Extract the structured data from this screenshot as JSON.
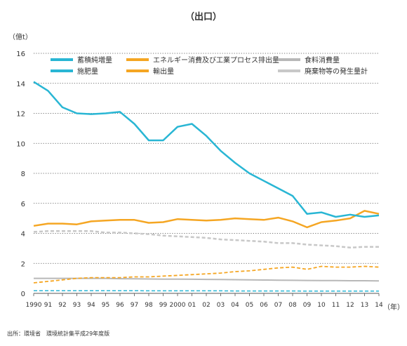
{
  "chart_data": {
    "type": "line",
    "title": "（出口）",
    "ylabel": "（億t）",
    "xlabel": "（年）",
    "source": "出所：環境省　環境統計集平成29年度版",
    "ylim": [
      0,
      16
    ],
    "y_ticks": [
      0,
      2,
      4,
      6,
      8,
      10,
      12,
      14,
      16
    ],
    "grid": "horizontal-dotted",
    "legend_position": "top",
    "categories": [
      "1990",
      "91",
      "92",
      "93",
      "94",
      "95",
      "96",
      "97",
      "98",
      "99",
      "2000",
      "01",
      "02",
      "03",
      "04",
      "05",
      "06",
      "07",
      "08",
      "09",
      "10",
      "11",
      "12",
      "13",
      "14"
    ],
    "series": [
      {
        "name": "蓄積純増量",
        "color": "#29b6d4",
        "dash": "solid",
        "width": 2.5,
        "values": [
          14.1,
          13.5,
          12.4,
          12.0,
          11.95,
          12.0,
          12.1,
          11.3,
          10.2,
          10.2,
          11.1,
          11.3,
          10.5,
          9.5,
          8.7,
          8.0,
          7.5,
          7.0,
          6.5,
          5.3,
          5.4,
          5.1,
          5.25,
          5.1,
          5.2
        ]
      },
      {
        "name": "エネルギー消費及び工業プロセス排出量",
        "color": "#f5a623",
        "dash": "solid",
        "width": 2.5,
        "values": [
          4.5,
          4.65,
          4.65,
          4.6,
          4.8,
          4.85,
          4.9,
          4.9,
          4.7,
          4.75,
          4.95,
          4.9,
          4.85,
          4.9,
          5.0,
          4.95,
          4.9,
          5.05,
          4.8,
          4.4,
          4.75,
          4.85,
          5.0,
          5.5,
          5.3
        ]
      },
      {
        "name": "食料消費量",
        "color": "#b8b8b8",
        "dash": "solid",
        "width": 2,
        "values": [
          1.0,
          1.0,
          1.0,
          1.0,
          1.0,
          1.0,
          0.98,
          0.97,
          0.96,
          0.95,
          0.95,
          0.94,
          0.93,
          0.92,
          0.91,
          0.9,
          0.89,
          0.88,
          0.87,
          0.86,
          0.85,
          0.85,
          0.84,
          0.84,
          0.83
        ]
      },
      {
        "name": "施肥量",
        "color": "#29b6d4",
        "dash": "dashed",
        "width": 1.5,
        "values": [
          0.18,
          0.18,
          0.18,
          0.18,
          0.18,
          0.18,
          0.18,
          0.18,
          0.17,
          0.17,
          0.17,
          0.17,
          0.17,
          0.17,
          0.16,
          0.16,
          0.16,
          0.16,
          0.16,
          0.15,
          0.15,
          0.15,
          0.15,
          0.15,
          0.15
        ]
      },
      {
        "name": "輸出量",
        "color": "#f5a623",
        "dash": "dashed",
        "width": 1.8,
        "values": [
          0.7,
          0.8,
          0.9,
          1.0,
          1.05,
          1.05,
          1.05,
          1.1,
          1.1,
          1.15,
          1.2,
          1.25,
          1.3,
          1.35,
          1.45,
          1.5,
          1.6,
          1.7,
          1.75,
          1.6,
          1.8,
          1.75,
          1.75,
          1.8,
          1.75
        ]
      },
      {
        "name": "廃棄物等の発生量計",
        "color": "#c8c8c8",
        "dash": "dashed",
        "width": 2.5,
        "values": [
          4.1,
          4.15,
          4.15,
          4.15,
          4.15,
          4.05,
          4.05,
          4.0,
          3.95,
          3.85,
          3.8,
          3.75,
          3.7,
          3.6,
          3.55,
          3.5,
          3.45,
          3.35,
          3.35,
          3.25,
          3.2,
          3.15,
          3.05,
          3.1,
          3.1
        ]
      }
    ],
    "legend_columns": [
      [
        0,
        3
      ],
      [
        1,
        4
      ],
      [
        2,
        5
      ]
    ]
  }
}
